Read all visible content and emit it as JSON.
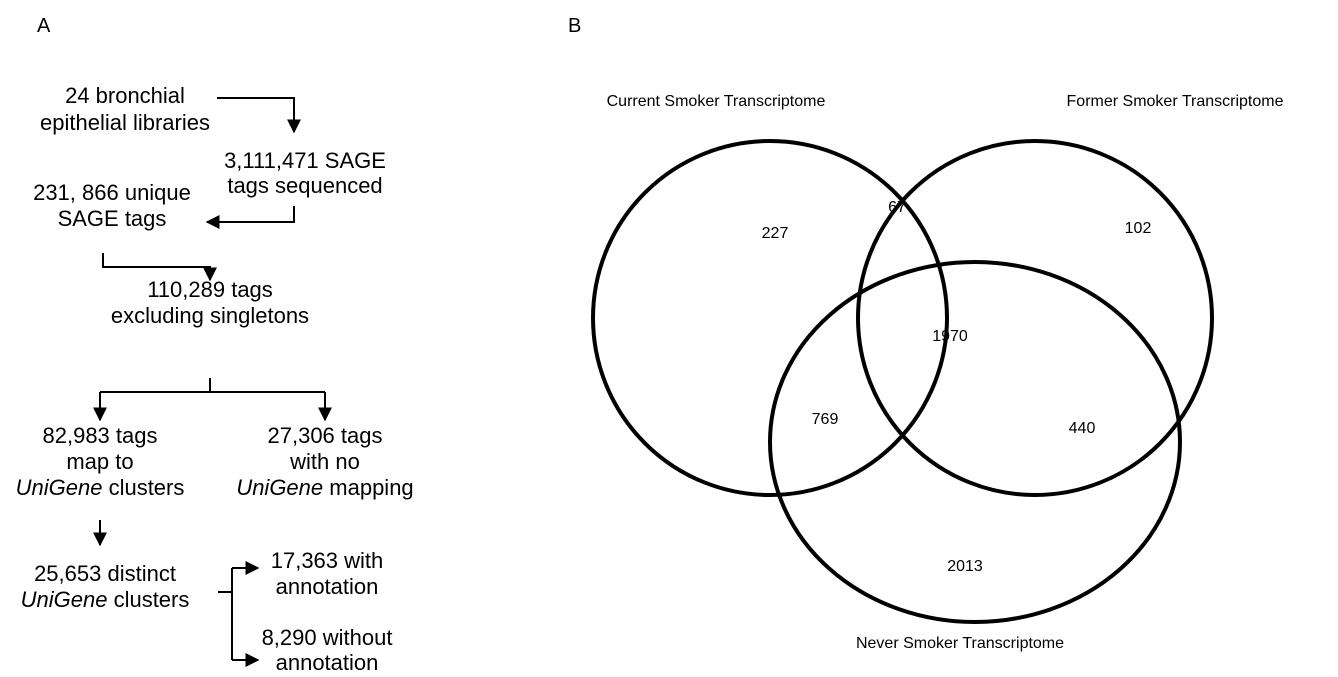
{
  "panel_labels": [
    "A",
    "B"
  ],
  "flowchart": {
    "nodes": [
      {
        "lines": [
          [
            "24 bronchial"
          ],
          [
            "epithelial libraries"
          ]
        ]
      },
      {
        "lines": [
          [
            "3,111,471 SAGE"
          ],
          [
            "tags sequenced"
          ]
        ]
      },
      {
        "lines": [
          [
            "231, 866 unique"
          ],
          [
            "SAGE tags"
          ]
        ]
      },
      {
        "lines": [
          [
            "110,289 tags"
          ],
          [
            "excluding singletons"
          ]
        ]
      },
      {
        "lines": [
          [
            "82,983 tags"
          ],
          [
            "map to"
          ],
          [
            {
              "italic": "UniGene"
            },
            " clusters"
          ]
        ]
      },
      {
        "lines": [
          [
            "27,306 tags"
          ],
          [
            "with no"
          ],
          [
            {
              "italic": "UniGene"
            },
            " mapping"
          ]
        ]
      },
      {
        "lines": [
          [
            "25,653 distinct"
          ],
          [
            {
              "italic": "UniGene"
            },
            " clusters"
          ]
        ]
      },
      {
        "lines": [
          [
            "17,363 with"
          ],
          [
            "annotation"
          ]
        ]
      },
      {
        "lines": [
          [
            "8,290 without"
          ],
          [
            "annotation"
          ]
        ]
      }
    ]
  },
  "venn": {
    "sets": [
      "Current Smoker Transcriptome",
      "Former Smoker Transcriptome",
      "Never Smoker Transcriptome"
    ],
    "regions": {
      "current_only": 227,
      "current_former": 67,
      "former_only": 102,
      "all_three": 1970,
      "current_never": 769,
      "former_never": 440,
      "never_only": 2013
    }
  }
}
